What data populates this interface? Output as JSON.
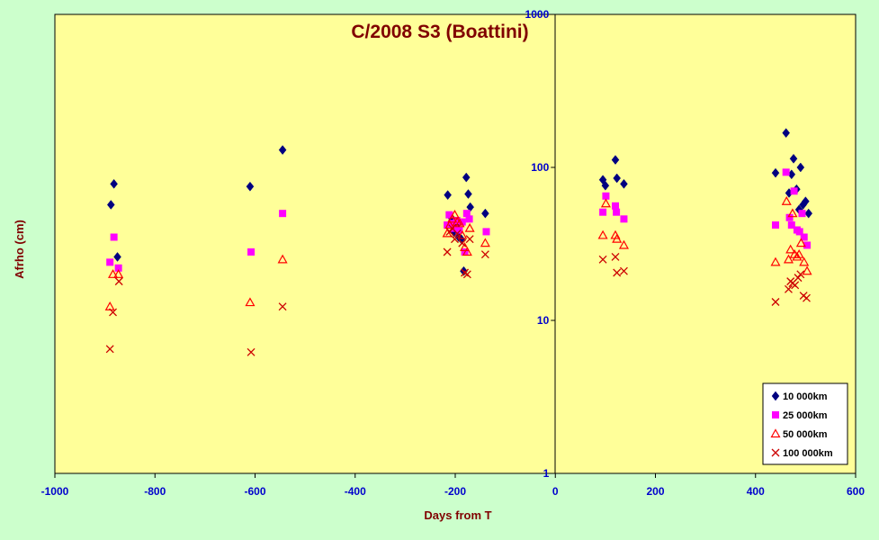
{
  "chart_data": {
    "type": "scatter",
    "title": "C/2008 S3 (Boattini)",
    "xlabel": "Days from  T",
    "ylabel": "Afrho (cm)",
    "xlim": [
      -1000,
      600
    ],
    "ylim": [
      1,
      1000
    ],
    "yscale": "log",
    "x_ticks": [
      "-1000",
      "-800",
      "-600",
      "-400",
      "-200",
      "0",
      "200",
      "400",
      "600"
    ],
    "y_ticks": [
      "1",
      "10",
      "100",
      "1000"
    ],
    "vertical_reference_line_x": 0,
    "grid": false,
    "legend_position": "bottom-right",
    "colors": {
      "plot_background": "#ffff99",
      "page_background": "#ccffcc",
      "s10000": "#000080",
      "s25000": "#ff00ff",
      "s50000": "#ff0000",
      "s100000": "#cc0000"
    },
    "series": [
      {
        "name": "10 000km",
        "marker": "diamond",
        "points": [
          [
            -888,
            57
          ],
          [
            -882,
            78
          ],
          [
            -875,
            26
          ],
          [
            -610,
            75
          ],
          [
            -545,
            130
          ],
          [
            -215,
            66
          ],
          [
            -208,
            47
          ],
          [
            -203,
            38
          ],
          [
            -197,
            42
          ],
          [
            -193,
            35
          ],
          [
            -188,
            34
          ],
          [
            -183,
            21
          ],
          [
            -178,
            86
          ],
          [
            -174,
            67
          ],
          [
            -170,
            55
          ],
          [
            -140,
            50
          ],
          [
            95,
            83
          ],
          [
            100,
            76
          ],
          [
            120,
            112
          ],
          [
            123,
            85
          ],
          [
            137,
            78
          ],
          [
            440,
            92
          ],
          [
            461,
            168
          ],
          [
            467,
            68
          ],
          [
            472,
            90
          ],
          [
            476,
            114
          ],
          [
            482,
            72
          ],
          [
            487,
            53
          ],
          [
            490,
            100
          ],
          [
            495,
            57
          ],
          [
            500,
            60
          ],
          [
            506,
            50
          ]
        ]
      },
      {
        "name": "25 000km",
        "marker": "square",
        "points": [
          [
            -890,
            24
          ],
          [
            -882,
            35
          ],
          [
            -873,
            22
          ],
          [
            -608,
            28
          ],
          [
            -545,
            50
          ],
          [
            -216,
            42
          ],
          [
            -212,
            49
          ],
          [
            -207,
            43
          ],
          [
            -202,
            40
          ],
          [
            -197,
            45
          ],
          [
            -192,
            39
          ],
          [
            -186,
            44
          ],
          [
            -181,
            28
          ],
          [
            -177,
            50
          ],
          [
            -172,
            46
          ],
          [
            -138,
            38
          ],
          [
            95,
            51
          ],
          [
            101,
            65
          ],
          [
            120,
            56
          ],
          [
            122,
            51
          ],
          [
            137,
            46
          ],
          [
            440,
            42
          ],
          [
            461,
            93
          ],
          [
            468,
            47
          ],
          [
            472,
            42
          ],
          [
            477,
            70
          ],
          [
            483,
            39
          ],
          [
            488,
            38
          ],
          [
            493,
            50
          ],
          [
            497,
            35
          ],
          [
            503,
            31
          ]
        ]
      },
      {
        "name": "50 000km",
        "marker": "triangle",
        "points": [
          [
            -890,
            12.3
          ],
          [
            -884,
            20
          ],
          [
            -873,
            20
          ],
          [
            -610,
            13.1
          ],
          [
            -545,
            25
          ],
          [
            -216,
            37
          ],
          [
            -211,
            42
          ],
          [
            -206,
            46
          ],
          [
            -201,
            49
          ],
          [
            -196,
            44
          ],
          [
            -191,
            43
          ],
          [
            -186,
            36
          ],
          [
            -181,
            30
          ],
          [
            -176,
            28
          ],
          [
            -171,
            40
          ],
          [
            -140,
            32
          ],
          [
            95,
            36
          ],
          [
            101,
            58
          ],
          [
            120,
            36
          ],
          [
            123,
            34
          ],
          [
            137,
            31
          ],
          [
            440,
            24
          ],
          [
            462,
            60
          ],
          [
            466,
            25
          ],
          [
            470,
            29
          ],
          [
            474,
            50
          ],
          [
            478,
            27
          ],
          [
            483,
            26
          ],
          [
            487,
            27
          ],
          [
            491,
            32
          ],
          [
            497,
            24
          ],
          [
            503,
            21
          ]
        ]
      },
      {
        "name": "100 000km",
        "marker": "x",
        "points": [
          [
            -890,
            6.5
          ],
          [
            -884,
            11.3
          ],
          [
            -872,
            18
          ],
          [
            -608,
            6.2
          ],
          [
            -545,
            12.3
          ],
          [
            -216,
            28
          ],
          [
            -211,
            38
          ],
          [
            -206,
            40
          ],
          [
            -201,
            34
          ],
          [
            -196,
            37
          ],
          [
            -186,
            32
          ],
          [
            -181,
            20.5
          ],
          [
            -176,
            20
          ],
          [
            -171,
            34
          ],
          [
            -140,
            27
          ],
          [
            95,
            25
          ],
          [
            120,
            26
          ],
          [
            123,
            20.5
          ],
          [
            137,
            21
          ],
          [
            440,
            13.2
          ],
          [
            466,
            16
          ],
          [
            470,
            18
          ],
          [
            474,
            17.5
          ],
          [
            479,
            17
          ],
          [
            485,
            19
          ],
          [
            490,
            20
          ],
          [
            496,
            14.5
          ],
          [
            502,
            14
          ]
        ]
      }
    ]
  }
}
